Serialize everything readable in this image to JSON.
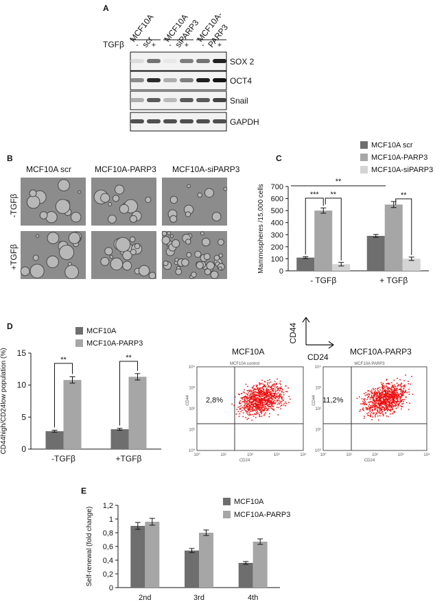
{
  "panels": {
    "A": {
      "letter": "A",
      "lanes": [
        "MCF10A scr",
        "MCF10A-siPARP3",
        "MCF10A-PARP3"
      ],
      "lane_label_lines": [
        [
          "MCF10A",
          "scr"
        ],
        [
          "MCF10A",
          "siPARP3"
        ],
        [
          "MCF10A-",
          "PARP3"
        ]
      ],
      "treatment_label": "TGFβ",
      "treatment_signs": [
        "-",
        "+",
        "-",
        "+",
        "-",
        "+"
      ],
      "blots": [
        {
          "name": "SOX 2",
          "bands": [
            0.15,
            0.6,
            0.1,
            0.55,
            0.6,
            0.95
          ]
        },
        {
          "name": "OCT4",
          "bands": [
            0.5,
            0.9,
            0.35,
            0.55,
            0.95,
            1.0
          ]
        },
        {
          "name": "Snail",
          "bands": [
            0.35,
            0.7,
            0.3,
            0.7,
            0.7,
            0.8
          ]
        },
        {
          "name": "GAPDH",
          "bands": [
            0.75,
            0.75,
            0.75,
            0.75,
            0.75,
            0.75
          ]
        }
      ]
    },
    "B": {
      "letter": "B",
      "columns": [
        "MCF10A scr",
        "MCF10A-PARP3",
        "MCF10A-siPARP3"
      ],
      "rows": [
        "-TGFβ",
        "+TGFβ"
      ]
    },
    "D_flow": {
      "axis_y": "CD44",
      "axis_x": "CD24",
      "plots": [
        {
          "title": "MCF10A",
          "inner_title": "MCF10A control",
          "percent": "2,8%"
        },
        {
          "title": "MCF10A-PARP3",
          "inner_title": "MCF10A PARP3",
          "percent": "11,2%"
        }
      ],
      "tick_labels": [
        "10⁰",
        "10¹",
        "10²",
        "10³",
        "10⁴"
      ],
      "axis_small_y": "CD44",
      "axis_small_x": "CD24"
    }
  },
  "colors": {
    "series_dark": "#6e6e6e",
    "series_mid": "#a6a6a6",
    "series_light": "#d4d4d4",
    "flow_dots": "#ee1111",
    "micro_bg": "#8c8c8c"
  },
  "chart_data": [
    {
      "panel": "C",
      "type": "bar",
      "categories": [
        "- TGFβ",
        "+ TGFβ"
      ],
      "series": [
        {
          "name": "MCF10A scr",
          "values": [
            110,
            290
          ],
          "errors": [
            8,
            12
          ]
        },
        {
          "name": "MCF10A-PARP3",
          "values": [
            500,
            550
          ],
          "errors": [
            22,
            25
          ]
        },
        {
          "name": "MCF10A-siPARP3",
          "values": [
            55,
            100
          ],
          "errors": [
            15,
            14
          ]
        }
      ],
      "ylabel": "Mammospheres /15.000 cells",
      "ylim": [
        0,
        700
      ],
      "yticks": [
        0,
        100,
        200,
        300,
        400,
        500,
        600,
        700
      ],
      "significance": [
        "***",
        "**",
        "**",
        "**"
      ],
      "legend": "top-right"
    },
    {
      "panel": "D",
      "type": "bar",
      "categories": [
        "-TGFβ",
        "+TGFβ"
      ],
      "series": [
        {
          "name": "MCF10A",
          "values": [
            2.8,
            3.1
          ],
          "errors": [
            0.15,
            0.15
          ]
        },
        {
          "name": "MCF10A-PARP3",
          "values": [
            10.8,
            11.3
          ],
          "errors": [
            0.5,
            0.5
          ]
        }
      ],
      "ylabel": "CD44high/CD24low population (%)",
      "ylim": [
        0,
        15
      ],
      "yticks": [
        0,
        5,
        10,
        15
      ],
      "significance": [
        "**",
        "**"
      ],
      "legend": "top"
    },
    {
      "panel": "E",
      "type": "bar",
      "categories": [
        "2nd",
        "3rd",
        "4th"
      ],
      "series": [
        {
          "name": "MCF10A",
          "values": [
            0.9,
            0.54,
            0.36
          ],
          "errors": [
            0.05,
            0.03,
            0.02
          ]
        },
        {
          "name": "MCF10A-PARP3",
          "values": [
            0.96,
            0.8,
            0.67
          ],
          "errors": [
            0.05,
            0.04,
            0.04
          ]
        }
      ],
      "ylabel": "Self-renewal (fold change)",
      "ylim": [
        0,
        1.2
      ],
      "yticks": [
        "0",
        "0,2",
        "0,4",
        "0,6",
        "0,8",
        "1",
        "1,2"
      ],
      "legend": "top-right"
    }
  ]
}
